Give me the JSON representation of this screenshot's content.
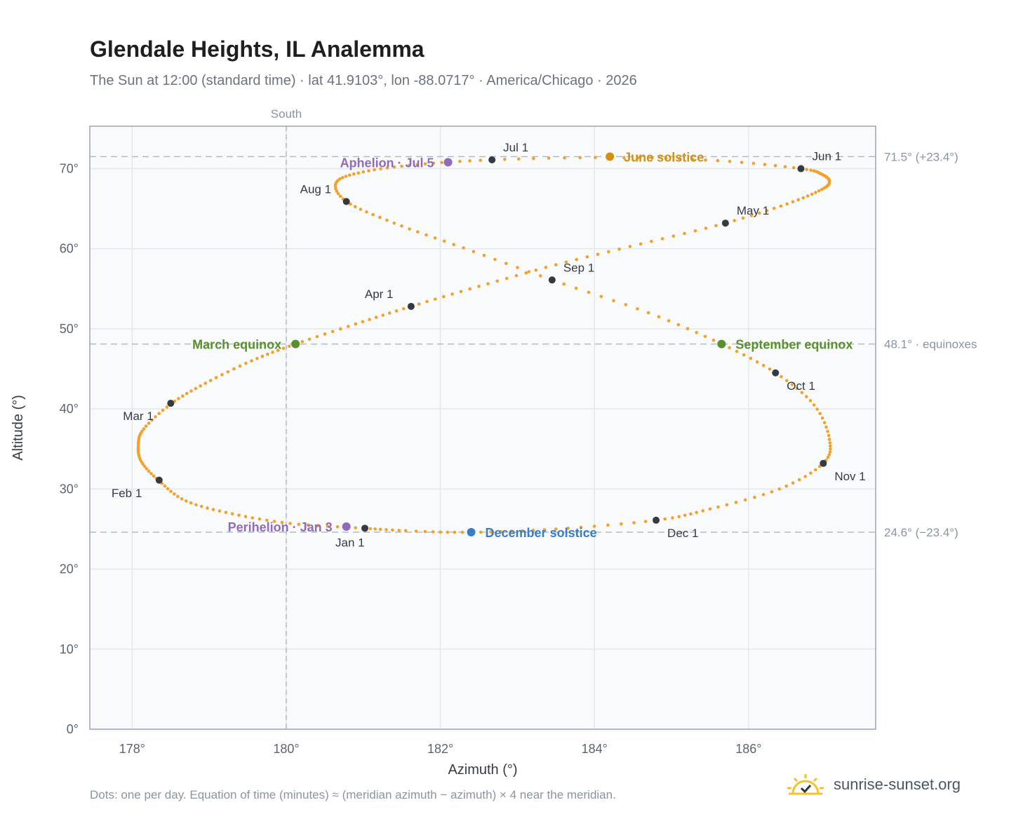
{
  "header": {
    "title": "Glendale Heights, IL Analemma",
    "subtitle": "The Sun at 12:00 (standard time) · lat 41.9103°, lon -88.0717° · America/Chicago · 2026"
  },
  "footer": {
    "note": "Dots: one per day. Equation of time (minutes) ≈ (meridian azimuth − azimuth) × 4 near the meridian.",
    "brand": "sunrise-sunset.org"
  },
  "colors": {
    "path": "#f2a12c",
    "month_marker": "#343a42",
    "equinox": "#5a8f2c",
    "june_solstice": "#d4900e",
    "december_solstice": "#3b7dc4",
    "apsis": "#8f6bb8",
    "reference_line": "#b0bcc7",
    "grid": "#e3e8ee",
    "plot_background": "#f8fafc",
    "frame": "#9aa5b4"
  },
  "chart_data": {
    "type": "scatter",
    "xlabel": "Azimuth (°)",
    "ylabel": "Altitude (°)",
    "xlim": [
      177.45,
      187.65
    ],
    "ylim": [
      0,
      75.3
    ],
    "x_ticks": [
      178,
      180,
      182,
      184,
      186
    ],
    "x_tick_labels": [
      "178°",
      "180°",
      "182°",
      "184°",
      "186°"
    ],
    "y_ticks": [
      0,
      10,
      20,
      30,
      40,
      50,
      60,
      70
    ],
    "y_tick_labels": [
      "0°",
      "10°",
      "20°",
      "30°",
      "40°",
      "50°",
      "60°",
      "70°"
    ],
    "grid": true,
    "reference_lines": {
      "vertical": {
        "azimuth": 180,
        "label": "South"
      },
      "horizontal": [
        {
          "altitude": 71.5,
          "label": "71.5° (+23.4°)"
        },
        {
          "altitude": 48.1,
          "label": "48.1° · equinoxes"
        },
        {
          "altitude": 24.6,
          "label": "24.6° (−23.4°)"
        }
      ]
    },
    "daily_path_anchors": [
      [
        181.0,
        25.1
      ],
      [
        180.05,
        25.7
      ],
      [
        179.3,
        26.9
      ],
      [
        178.7,
        28.5
      ],
      [
        178.35,
        31.0
      ],
      [
        178.12,
        33.4
      ],
      [
        178.08,
        35.5
      ],
      [
        178.15,
        37.5
      ],
      [
        178.5,
        40.6
      ],
      [
        178.95,
        43.2
      ],
      [
        179.55,
        46.0
      ],
      [
        180.12,
        48.1
      ],
      [
        180.9,
        50.6
      ],
      [
        181.62,
        52.8
      ],
      [
        182.5,
        55.3
      ],
      [
        183.5,
        58.0
      ],
      [
        184.6,
        60.6
      ],
      [
        185.7,
        63.2
      ],
      [
        186.5,
        65.6
      ],
      [
        186.95,
        67.4
      ],
      [
        187.05,
        68.4
      ],
      [
        186.95,
        69.3
      ],
      [
        186.68,
        70.0
      ],
      [
        185.6,
        71.0
      ],
      [
        184.2,
        71.4
      ],
      [
        182.67,
        71.1
      ],
      [
        181.7,
        70.5
      ],
      [
        181.0,
        69.6
      ],
      [
        180.65,
        68.3
      ],
      [
        180.78,
        65.9
      ],
      [
        181.4,
        63.2
      ],
      [
        182.3,
        60.1
      ],
      [
        183.45,
        56.1
      ],
      [
        184.7,
        52.0
      ],
      [
        185.65,
        48.1
      ],
      [
        186.35,
        44.5
      ],
      [
        186.85,
        40.5
      ],
      [
        187.05,
        36.2
      ],
      [
        186.97,
        33.2
      ],
      [
        186.4,
        30.0
      ],
      [
        185.5,
        27.5
      ],
      [
        184.8,
        26.1
      ],
      [
        183.5,
        25.0
      ],
      [
        182.4,
        24.6
      ],
      [
        181.55,
        24.8
      ],
      [
        181.0,
        25.1
      ]
    ],
    "month_markers": [
      {
        "label": "Jan 1",
        "az": 181.02,
        "alt": 25.1,
        "pos": "below"
      },
      {
        "label": "Feb 1",
        "az": 178.35,
        "alt": 31.1,
        "pos": "below-left"
      },
      {
        "label": "Mar 1",
        "az": 178.5,
        "alt": 40.7,
        "pos": "below-left"
      },
      {
        "label": "Apr 1",
        "az": 181.62,
        "alt": 52.8,
        "pos": "above-left"
      },
      {
        "label": "May 1",
        "az": 185.7,
        "alt": 63.2,
        "pos": "above-right"
      },
      {
        "label": "Jun 1",
        "az": 186.68,
        "alt": 70.0,
        "pos": "above-right"
      },
      {
        "label": "Jul 1",
        "az": 182.67,
        "alt": 71.1,
        "pos": "above-right"
      },
      {
        "label": "Aug 1",
        "az": 180.78,
        "alt": 65.9,
        "pos": "above-left"
      },
      {
        "label": "Sep 1",
        "az": 183.45,
        "alt": 56.1,
        "pos": "above-right"
      },
      {
        "label": "Oct 1",
        "az": 186.35,
        "alt": 44.5,
        "pos": "below-right"
      },
      {
        "label": "Nov 1",
        "az": 186.97,
        "alt": 33.2,
        "pos": "below-right"
      },
      {
        "label": "Dec 1",
        "az": 184.8,
        "alt": 26.1,
        "pos": "below-right"
      }
    ],
    "events": [
      {
        "label": "June solstice",
        "az": 184.2,
        "alt": 71.5,
        "color_key": "june_solstice",
        "side": "right"
      },
      {
        "label": "December solstice",
        "az": 182.4,
        "alt": 24.6,
        "color_key": "december_solstice",
        "side": "right"
      },
      {
        "label": "March equinox",
        "az": 180.12,
        "alt": 48.1,
        "color_key": "equinox",
        "side": "left"
      },
      {
        "label": "September equinox",
        "az": 185.65,
        "alt": 48.1,
        "color_key": "equinox",
        "side": "right"
      },
      {
        "label": "Aphelion · Jul 5",
        "az": 182.1,
        "alt": 70.8,
        "color_key": "apsis",
        "side": "left"
      },
      {
        "label": "Perihelion · Jan 3",
        "az": 180.78,
        "alt": 25.3,
        "color_key": "apsis",
        "side": "left"
      }
    ]
  }
}
